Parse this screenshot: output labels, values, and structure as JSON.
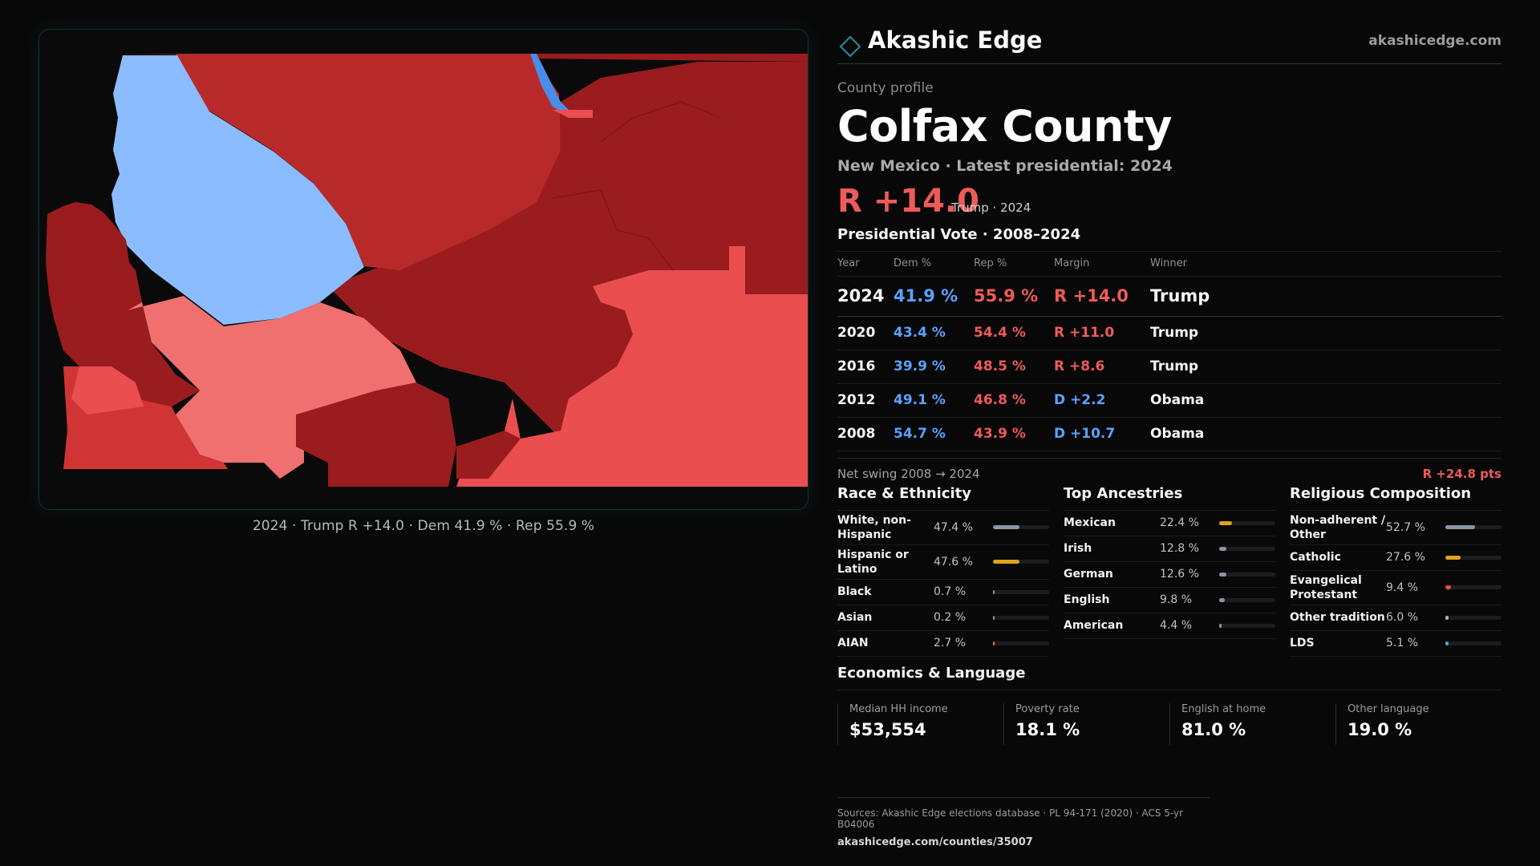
{
  "brand": {
    "name": "Akashic Edge",
    "url": "akashicedge.com",
    "icon": "diamond-icon",
    "accent": "#2a8aa0"
  },
  "profile": {
    "eyebrow": "County profile",
    "title": "Colfax County",
    "subtitle": "New Mexico · Latest presidential: 2024",
    "headline_margin": "R +14.0",
    "headline_note": "Trump · 2024"
  },
  "map": {
    "caption": "2024 · Trump R +14.0 · Dem 41.9 % · Rep 55.9 %",
    "colors": {
      "dem_light": "#8bbcff",
      "dem": "#4a8ce6",
      "rep_light": "#f07070",
      "rep": "#ea4e4e",
      "rep_mid": "#d13434",
      "rep_dark": "#b82a2a",
      "rep_darkest": "#9a1c1e"
    }
  },
  "vote": {
    "title": "Presidential Vote · 2008–2024",
    "headers": {
      "year": "Year",
      "dem": "Dem %",
      "rep": "Rep %",
      "margin": "Margin",
      "winner": "Winner"
    },
    "rows": [
      {
        "year": "2024",
        "dem": "41.9 %",
        "rep": "55.9 %",
        "margin": "R +14.0",
        "winner": "Trump"
      },
      {
        "year": "2020",
        "dem": "43.4 %",
        "rep": "54.4 %",
        "margin": "R +11.0",
        "winner": "Trump"
      },
      {
        "year": "2016",
        "dem": "39.9 %",
        "rep": "48.5 %",
        "margin": "R +8.6",
        "winner": "Trump"
      },
      {
        "year": "2012",
        "dem": "49.1 %",
        "rep": "46.8 %",
        "margin": "D +2.2",
        "winner": "Obama"
      },
      {
        "year": "2008",
        "dem": "54.7 %",
        "rep": "43.9 %",
        "margin": "D +10.7",
        "winner": "Obama"
      }
    ],
    "swing_label": "Net swing 2008 → 2024",
    "swing_value": "R +24.8 pts"
  },
  "race": {
    "title": "Race & Ethnicity",
    "items": [
      {
        "label": "White, non-Hispanic",
        "pct": "47.4 %",
        "value": 47.4,
        "color": "#8b95a8"
      },
      {
        "label": "Hispanic or Latino",
        "pct": "47.6 %",
        "value": 47.6,
        "color": "#e2a21c"
      },
      {
        "label": "Black",
        "pct": "0.7 %",
        "value": 0.7,
        "color": "#8b95a8"
      },
      {
        "label": "Asian",
        "pct": "0.2 %",
        "value": 0.2,
        "color": "#8b95a8"
      },
      {
        "label": "AIAN",
        "pct": "2.7 %",
        "value": 2.7,
        "color": "#e27a2a"
      }
    ]
  },
  "ancestry": {
    "title": "Top Ancestries",
    "items": [
      {
        "label": "Mexican",
        "pct": "22.4 %",
        "value": 22.4,
        "color": "#e2a21c"
      },
      {
        "label": "Irish",
        "pct": "12.8 %",
        "value": 12.8,
        "color": "#8b95a8"
      },
      {
        "label": "German",
        "pct": "12.6 %",
        "value": 12.6,
        "color": "#8b95a8"
      },
      {
        "label": "English",
        "pct": "9.8 %",
        "value": 9.8,
        "color": "#8b95a8"
      },
      {
        "label": "American",
        "pct": "4.4 %",
        "value": 4.4,
        "color": "#8b95a8"
      }
    ]
  },
  "religion": {
    "title": "Religious Composition",
    "items": [
      {
        "label": "Non-adherent / Other",
        "pct": "52.7 %",
        "value": 52.7,
        "color": "#8b95a8"
      },
      {
        "label": "Catholic",
        "pct": "27.6 %",
        "value": 27.6,
        "color": "#e2a21c"
      },
      {
        "label": "Evangelical Protestant",
        "pct": "9.4 %",
        "value": 9.4,
        "color": "#e05050"
      },
      {
        "label": "Other tradition",
        "pct": "6.0 %",
        "value": 6.0,
        "color": "#b0b0b0"
      },
      {
        "label": "LDS",
        "pct": "5.1 %",
        "value": 5.1,
        "color": "#2ab0c8"
      }
    ]
  },
  "economics": {
    "title": "Economics & Language",
    "items": [
      {
        "label": "Median HH income",
        "value": "$53,554"
      },
      {
        "label": "Poverty rate",
        "value": "18.1 %"
      },
      {
        "label": "English at home",
        "value": "81.0 %"
      },
      {
        "label": "Other language",
        "value": "19.0 %"
      }
    ]
  },
  "sources": {
    "line": "Sources: Akashic Edge elections database · PL 94-171 (2020) · ACS 5-yr B04006",
    "link": "akashicedge.com/counties/35007"
  }
}
